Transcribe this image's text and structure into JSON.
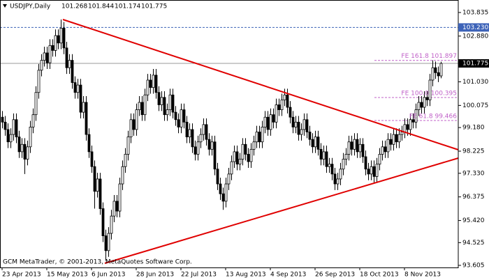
{
  "chart_data": {
    "type": "candlestick",
    "title": "USDJPY,Daily",
    "last_ohlc": [
      101.268,
      101.844,
      101.174,
      101.775
    ],
    "footnote": "GCM MetaTrader, © 2001-2013, MetaQuotes Software Corp.",
    "categories": [
      "23 Apr 2013",
      null,
      null,
      null,
      null,
      null,
      null,
      null,
      null,
      null,
      null,
      null,
      null,
      null,
      null,
      null,
      "15 May 2013",
      null,
      null,
      null,
      null,
      null,
      null,
      null,
      null,
      null,
      null,
      null,
      null,
      null,
      null,
      null,
      "6 Jun 2013",
      null,
      null,
      null,
      null,
      null,
      null,
      null,
      null,
      null,
      null,
      null,
      null,
      null,
      null,
      null,
      "28 Jun 2013",
      null,
      null,
      null,
      null,
      null,
      null,
      null,
      null,
      null,
      null,
      null,
      null,
      null,
      null,
      null,
      "22 Jul 2013",
      null,
      null,
      null,
      null,
      null,
      null,
      null,
      null,
      null,
      null,
      null,
      null,
      null,
      null,
      null,
      "13 Aug 2013",
      null,
      null,
      null,
      null,
      null,
      null,
      null,
      null,
      null,
      null,
      null,
      null,
      null,
      null,
      null,
      "4 Sep 2013",
      null,
      null,
      null,
      null,
      null,
      null,
      null,
      null,
      null,
      null,
      null,
      null,
      null,
      null,
      null,
      "26 Sep 2013",
      null,
      null,
      null,
      null,
      null,
      null,
      null,
      null,
      null,
      null,
      null,
      null,
      null,
      null,
      null,
      "18 Oct 2013",
      null,
      null,
      null,
      null,
      null,
      null,
      null,
      null,
      null,
      null,
      null,
      null,
      null,
      null,
      null,
      "8 Nov 2013",
      null,
      null,
      null,
      null,
      null,
      null,
      null,
      null,
      null,
      null,
      null,
      null,
      null
    ],
    "open": [
      99.6,
      99.4,
      99.1,
      98.6,
      98.9,
      99.5,
      98.8,
      98.2,
      98.5,
      97.9,
      98.4,
      99.2,
      99.7,
      100.6,
      101.5,
      101.9,
      102.2,
      101.8,
      102.5,
      102.3,
      102.9,
      102.6,
      103.2,
      102.4,
      101.6,
      101.9,
      101.0,
      100.6,
      100.9,
      99.8,
      100.2,
      98.9,
      98.2,
      97.6,
      96.6,
      97.1,
      95.9,
      94.8,
      94.2,
      94.9,
      95.6,
      96.2,
      95.8,
      96.9,
      97.6,
      98.1,
      98.8,
      99.5,
      99.1,
      99.9,
      100.2,
      99.7,
      100.5,
      101.1,
      100.8,
      101.3,
      100.6,
      100.1,
      100.4,
      99.7,
      99.9,
      100.5,
      99.8,
      99.5,
      99.2,
      99.9,
      99.4,
      98.8,
      99.1,
      98.4,
      98.1,
      98.6,
      98.9,
      99.3,
      98.7,
      98.3,
      98.6,
      97.5,
      96.9,
      96.5,
      96.2,
      96.9,
      97.3,
      97.8,
      98.2,
      97.7,
      97.9,
      98.5,
      98.1,
      97.8,
      98.3,
      98.6,
      99.0,
      98.6,
      99.2,
      99.6,
      99.1,
      99.7,
      99.4,
      100.1,
      99.9,
      100.3,
      100.5,
      100.0,
      99.6,
      99.2,
      99.4,
      98.9,
      99.1,
      99.5,
      99.0,
      98.7,
      98.4,
      98.8,
      98.3,
      97.9,
      98.2,
      97.6,
      97.7,
      97.3,
      96.9,
      97.1,
      97.5,
      97.9,
      98.1,
      98.6,
      98.3,
      98.7,
      98.2,
      98.5,
      98.0,
      97.5,
      97.3,
      97.6,
      97.2,
      97.7,
      98.1,
      98.4,
      98.2,
      98.7,
      98.5,
      98.9,
      98.6,
      98.9,
      99.0,
      99.3,
      99.1,
      99.5,
      99.4,
      99.9,
      100.2,
      100.0,
      100.4,
      100.3,
      101.1,
      101.6,
      101.4,
      101.268
    ],
    "high": [
      99.85,
      99.65,
      99.35,
      99.15,
      99.75,
      99.75,
      99.05,
      98.75,
      98.75,
      98.65,
      99.45,
      99.95,
      100.85,
      101.75,
      102.15,
      102.45,
      102.45,
      102.75,
      102.75,
      103.15,
      103.15,
      103.55,
      103.45,
      102.65,
      102.15,
      102.15,
      101.25,
      101.15,
      101.15,
      100.45,
      100.45,
      99.15,
      98.45,
      97.85,
      97.35,
      97.35,
      96.15,
      95.05,
      95.15,
      95.85,
      96.45,
      96.45,
      97.15,
      97.85,
      98.35,
      99.05,
      99.75,
      99.75,
      100.15,
      100.45,
      100.45,
      100.75,
      101.35,
      101.35,
      101.55,
      101.55,
      100.85,
      100.65,
      100.65,
      100.15,
      100.75,
      100.75,
      100.05,
      99.75,
      100.15,
      100.15,
      99.65,
      99.35,
      99.35,
      98.65,
      98.85,
      99.15,
      99.55,
      99.55,
      98.95,
      98.85,
      98.85,
      97.75,
      97.15,
      96.75,
      97.15,
      97.55,
      98.05,
      98.45,
      98.45,
      98.15,
      98.75,
      98.75,
      98.35,
      98.55,
      98.85,
      99.25,
      99.25,
      99.45,
      99.85,
      99.85,
      99.95,
      99.95,
      100.35,
      100.35,
      100.55,
      100.75,
      100.75,
      100.25,
      99.85,
      99.65,
      99.65,
      99.35,
      99.75,
      99.75,
      99.25,
      98.95,
      99.05,
      99.05,
      98.55,
      98.45,
      98.45,
      97.95,
      97.95,
      97.55,
      97.35,
      97.75,
      98.15,
      98.35,
      98.85,
      98.85,
      98.95,
      98.95,
      98.75,
      98.75,
      98.25,
      97.75,
      97.85,
      97.85,
      97.95,
      98.35,
      98.65,
      98.65,
      98.95,
      98.95,
      99.15,
      99.15,
      99.15,
      99.25,
      99.55,
      99.55,
      99.75,
      99.75,
      100.15,
      100.45,
      100.45,
      100.65,
      100.65,
      101.35,
      101.9,
      101.85,
      101.65,
      101.844
    ],
    "low": [
      99.15,
      98.85,
      98.35,
      98.35,
      98.65,
      98.55,
      97.95,
      97.95,
      97.3,
      97.65,
      98.15,
      98.95,
      99.45,
      100.35,
      101.25,
      101.65,
      101.55,
      101.55,
      102.05,
      102.05,
      102.35,
      102.35,
      102.15,
      101.35,
      101.35,
      100.75,
      100.35,
      100.35,
      99.55,
      99.55,
      98.65,
      97.95,
      97.35,
      95.9,
      96.35,
      95.65,
      94.55,
      93.8,
      93.95,
      94.65,
      95.35,
      95.55,
      95.55,
      96.65,
      97.35,
      97.85,
      98.55,
      98.85,
      98.85,
      99.65,
      99.45,
      99.45,
      100.25,
      100.55,
      100.55,
      100.35,
      99.85,
      99.85,
      99.45,
      99.45,
      99.65,
      99.55,
      99.25,
      98.95,
      98.95,
      99.15,
      98.55,
      98.55,
      98.15,
      97.85,
      97.85,
      98.35,
      98.65,
      98.45,
      98.05,
      98.05,
      97.25,
      96.65,
      96.25,
      95.85,
      95.95,
      96.65,
      97.05,
      97.55,
      97.45,
      97.45,
      97.65,
      97.85,
      97.55,
      97.55,
      98.05,
      98.35,
      98.35,
      98.35,
      98.95,
      98.85,
      98.85,
      99.15,
      99.15,
      99.65,
      99.65,
      100.05,
      99.75,
      99.35,
      98.95,
      98.95,
      98.65,
      98.65,
      98.85,
      98.75,
      98.45,
      98.15,
      98.15,
      98.05,
      97.65,
      97.65,
      97.35,
      97.35,
      97.05,
      96.65,
      96.65,
      96.85,
      97.25,
      97.65,
      97.85,
      98.05,
      98.05,
      97.95,
      97.95,
      97.75,
      97.25,
      97.05,
      97.05,
      96.95,
      96.95,
      97.45,
      97.85,
      97.95,
      97.95,
      98.25,
      98.25,
      98.35,
      98.35,
      98.65,
      98.75,
      98.85,
      98.85,
      99.15,
      99.15,
      99.65,
      99.75,
      99.75,
      100.05,
      100.05,
      100.85,
      101.15,
      101.02,
      101.174
    ],
    "close": [
      99.4,
      99.1,
      98.6,
      98.9,
      99.5,
      98.8,
      98.2,
      98.5,
      97.9,
      98.4,
      99.2,
      99.7,
      100.6,
      101.5,
      101.9,
      102.2,
      101.8,
      102.5,
      102.3,
      102.9,
      102.6,
      103.2,
      102.4,
      101.6,
      101.9,
      101.0,
      100.6,
      100.9,
      99.8,
      100.2,
      98.9,
      98.2,
      97.6,
      96.6,
      97.1,
      95.9,
      94.8,
      94.2,
      94.9,
      95.6,
      96.2,
      95.8,
      96.9,
      97.6,
      98.1,
      98.8,
      99.5,
      99.1,
      99.9,
      100.2,
      99.7,
      100.5,
      101.1,
      100.8,
      101.3,
      100.6,
      100.1,
      100.4,
      99.7,
      99.9,
      100.5,
      99.8,
      99.5,
      99.2,
      99.9,
      99.4,
      98.8,
      99.1,
      98.4,
      98.1,
      98.6,
      98.9,
      99.3,
      98.7,
      98.3,
      98.6,
      97.5,
      96.9,
      96.5,
      96.2,
      96.9,
      97.3,
      97.8,
      98.2,
      97.7,
      97.9,
      98.5,
      98.1,
      97.8,
      98.3,
      98.6,
      99.0,
      98.6,
      99.2,
      99.6,
      99.1,
      99.7,
      99.4,
      100.1,
      99.9,
      100.3,
      100.5,
      100.0,
      99.6,
      99.2,
      99.4,
      98.9,
      99.1,
      99.5,
      99.0,
      98.7,
      98.4,
      98.8,
      98.3,
      97.9,
      98.2,
      97.6,
      97.7,
      97.3,
      96.9,
      97.1,
      97.5,
      97.9,
      98.1,
      98.6,
      98.3,
      98.7,
      98.2,
      98.5,
      98.0,
      97.5,
      97.3,
      97.6,
      97.2,
      97.7,
      98.1,
      98.4,
      98.2,
      98.7,
      98.5,
      98.9,
      98.6,
      98.9,
      99.0,
      99.3,
      99.1,
      99.5,
      99.4,
      99.9,
      100.2,
      100.0,
      100.4,
      100.3,
      101.1,
      101.6,
      101.4,
      101.27,
      101.775
    ],
    "ylim": [
      93.52,
      104.34
    ],
    "yticks": [
      {
        "value": 103.835,
        "label": "103.835"
      },
      {
        "value": 102.88,
        "label": "102.880"
      },
      {
        "value": 101.03,
        "label": "101.030"
      },
      {
        "value": 100.075,
        "label": "100.075"
      },
      {
        "value": 99.18,
        "label": "99.180"
      },
      {
        "value": 98.225,
        "label": "98.225"
      },
      {
        "value": 97.33,
        "label": "97.330"
      },
      {
        "value": 96.375,
        "label": "96.375"
      },
      {
        "value": 95.42,
        "label": "95.420"
      },
      {
        "value": 94.525,
        "label": "94.525"
      },
      {
        "value": 93.605,
        "label": "93.605"
      }
    ],
    "levels": [
      {
        "value": 103.23,
        "label": "103.230",
        "color": "#3d63b8"
      },
      {
        "value": 101.775,
        "label": "101.775",
        "color": "#000000"
      }
    ],
    "fe_levels": [
      {
        "value": 101.897,
        "label": "FE 161.8 101.897"
      },
      {
        "value": 100.395,
        "label": "FE 100.0 100.395"
      },
      {
        "value": 99.466,
        "label": "FE 61.8 99.466"
      }
    ],
    "fe_color": "#c060c8",
    "trend_color": "#e00000"
  }
}
